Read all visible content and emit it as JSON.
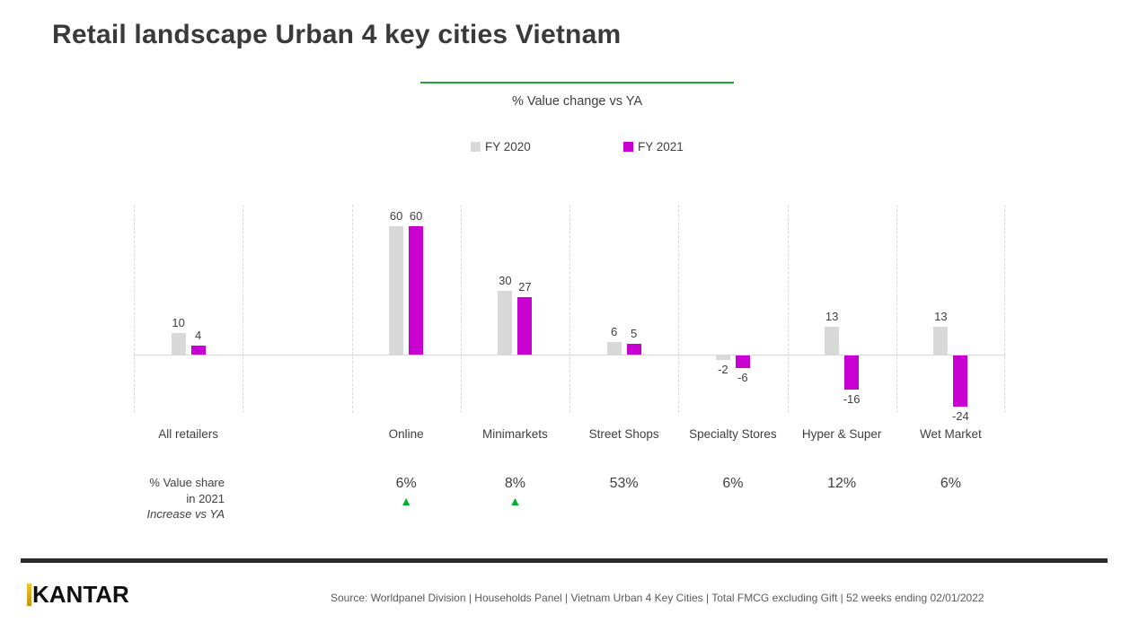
{
  "title": "Retail landscape Urban 4 key cities Vietnam",
  "chart_data": {
    "type": "bar",
    "title": "% Value change vs YA",
    "categories": [
      "All retailers",
      "Online",
      "Minimarkets",
      "Street Shops",
      "Specialty Stores",
      "Hyper & Super",
      "Wet Market"
    ],
    "series": [
      {
        "name": "FY 2020",
        "color": "#D9D9D9",
        "values": [
          10,
          60,
          30,
          6,
          -2,
          13,
          13
        ]
      },
      {
        "name": "FY 2021",
        "color": "#C800D2",
        "values": [
          4,
          60,
          27,
          5,
          -6,
          -16,
          -24
        ]
      }
    ],
    "ylim": [
      -30,
      70
    ],
    "grid": "vertical-dashed",
    "legend_position": "top",
    "value_labels": true
  },
  "legend": [
    {
      "label": "FY 2020",
      "color": "#D9D9D9"
    },
    {
      "label": "FY 2021",
      "color": "#C800D2"
    }
  ],
  "share_row": {
    "label_line1": "% Value share",
    "label_line2": "in 2021",
    "label_line3_italic": "Increase vs YA",
    "values": [
      {
        "category": "Online",
        "value": "6%",
        "trend_up": true
      },
      {
        "category": "Minimarkets",
        "value": "8%",
        "trend_up": true
      },
      {
        "category": "Street Shops",
        "value": "53%",
        "trend_up": false
      },
      {
        "category": "Specialty Stores",
        "value": "6%",
        "trend_up": false
      },
      {
        "category": "Hyper & Super",
        "value": "12%",
        "trend_up": false
      },
      {
        "category": "Wet Market",
        "value": "6%",
        "trend_up": false
      }
    ]
  },
  "footer": {
    "logo_text": "KANTAR",
    "source": "Source: Worldpanel Division | Households Panel | Vietnam Urban 4 Key Cities | Total FMCG excluding Gift | 52 weeks ending 02/01/2022"
  },
  "colors": {
    "bar_fy2020": "#D9D9D9",
    "bar_fy2021": "#C800D2",
    "accent_line_green": "#21A342",
    "trend_triangle_green": "#00B42A",
    "text_dark": "#404040",
    "logo_gold_top": "#F2C727",
    "logo_gold_bottom": "#C89212",
    "footer_bar": "#2B2B2B"
  }
}
